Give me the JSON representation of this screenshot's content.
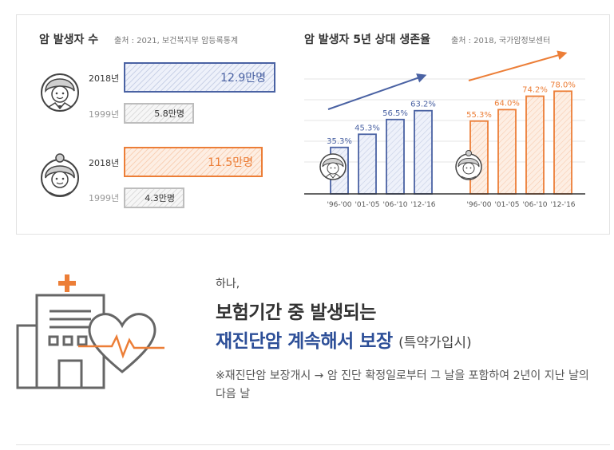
{
  "left_section": {
    "title": "암 발생자 수",
    "source": "출처 : 2021, 보건복지부 암등록통계",
    "male": {
      "year_main": "2018년",
      "value_main": "12.9만명",
      "year_sub": "1999년",
      "value_sub": "5.8만명"
    },
    "female": {
      "year_main": "2018년",
      "value_main": "11.5만명",
      "year_sub": "1999년",
      "value_sub": "4.3만명"
    }
  },
  "right_section": {
    "title": "암 발생자 5년 상대 생존율",
    "source": "출처 : 2018, 국가암정보센터"
  },
  "chart_data": [
    {
      "type": "bar",
      "title": "암 발생자 수",
      "categories": [
        "2018년",
        "1999년"
      ],
      "series": [
        {
          "values": [
            12.9,
            5.8
          ]
        },
        {
          "values": [
            11.5,
            4.3
          ]
        }
      ],
      "unit": "만명"
    },
    {
      "type": "bar",
      "title": "암 발생자 5년 상대 생존율",
      "categories": [
        "'96-'00",
        "'01-'05",
        "'06-'10",
        "'12-'16"
      ],
      "series": [
        {
          "values": [
            35.3,
            45.3,
            56.5,
            63.2
          ],
          "labels": [
            "35.3%",
            "45.3%",
            "56.5%",
            "63.2%"
          ],
          "color": "#4a62a3"
        },
        {
          "values": [
            55.3,
            64.0,
            74.2,
            78.0
          ],
          "labels": [
            "55.3%",
            "64.0%",
            "74.2%",
            "78.0%"
          ],
          "color": "#ec7e37"
        }
      ],
      "grid": true,
      "ylim": [
        0,
        100
      ]
    }
  ],
  "colors": {
    "blue": "#4a62a3",
    "orange": "#ec7e37",
    "navy_text": "#2d4f98",
    "icon_gray": "#666666"
  },
  "lower_section": {
    "icons": [
      "hospital-icon",
      "heart-icon",
      "heartbeat-icon",
      "cross-icon"
    ],
    "subtitle": "하나,",
    "heading_line1": "보험기간 중 발생되는",
    "heading_line2": "재진단암 계속해서 보장",
    "heading_paren": "(특약가입시)",
    "note": "※재진단암 보장개시 → 암 진단 확정일로부터 그 날을 포함하여 2년이 지난 날의 다음 날"
  }
}
